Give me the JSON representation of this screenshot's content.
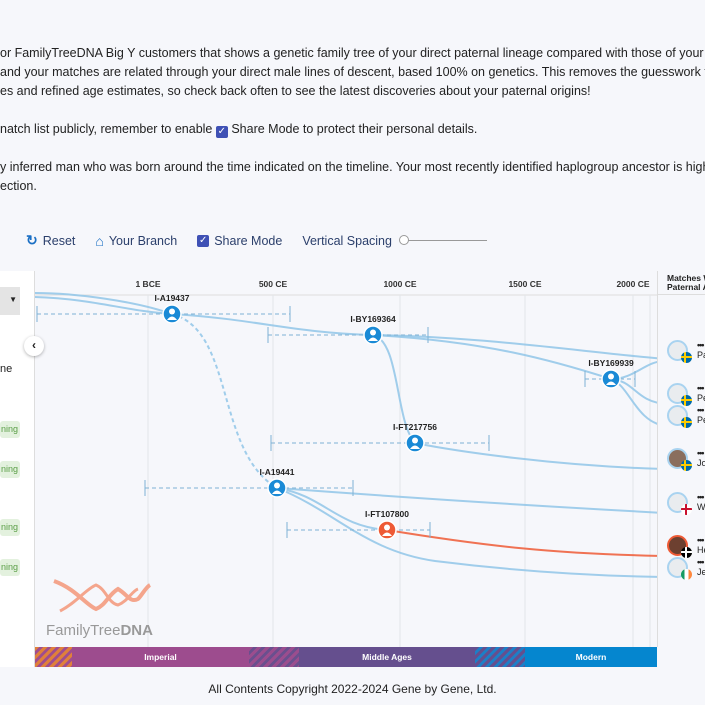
{
  "intro": {
    "line1": "or FamilyTreeDNA Big Y customers that shows a genetic family tree of your direct paternal lineage compared with those of your Y-DNA ma",
    "line2": "and your matches are related through your direct male lines of descent, based 100% on genetics. This removes the guesswork for understa",
    "line3": "es and refined age estimates, so check back often to see the latest discoveries about your paternal origins!",
    "share_pre": "natch list publicly, remember to enable",
    "share_post": "Share Mode to protect their personal details.",
    "line5": "y inferred man who was born around the time indicated on the timeline. Your most recently identified haplogroup ancestor is highlighted wi",
    "line6": "ection."
  },
  "toolbar": {
    "reset": "Reset",
    "your_branch": "Your Branch",
    "share_mode": "Share Mode",
    "share_mode_checked": true,
    "vertical_spacing": "Vertical Spacing",
    "vertical_spacing_value": 0
  },
  "sidebar": {
    "partial_text": "ne",
    "badges": [
      "ning",
      "ning",
      "ning",
      "ning"
    ]
  },
  "axis": {
    "ticks": [
      "1 BCE",
      "500 CE",
      "1000 CE",
      "1500 CE",
      "2000 CE"
    ]
  },
  "nodes": [
    {
      "label": "I-A19437",
      "highlight": false
    },
    {
      "label": "I-BY169364",
      "highlight": false
    },
    {
      "label": "I-BY169939",
      "highlight": false
    },
    {
      "label": "I-FT217756",
      "highlight": false
    },
    {
      "label": "I-A19441",
      "highlight": false
    },
    {
      "label": "I-FT107800",
      "highlight": true
    }
  ],
  "matches_header": {
    "line1": "Matches W",
    "line2": "Paternal A"
  },
  "matches": [
    {
      "masked": "•••",
      "name": "Pa",
      "flag": "sweden",
      "photo": false
    },
    {
      "masked": "•••",
      "name": "Pe",
      "flag": "sweden",
      "photo": false
    },
    {
      "masked": "•••",
      "name": "Pe",
      "flag": "sweden",
      "photo": false
    },
    {
      "masked": "•••",
      "name": "Jo",
      "flag": "sweden",
      "photo": true
    },
    {
      "masked": "•••",
      "name": "W",
      "flag": "united-kingdom",
      "photo": false
    },
    {
      "masked": "•••",
      "name": "He",
      "flag": "cornwall",
      "photo": true
    },
    {
      "masked": "•••",
      "name": "Je",
      "flag": "ireland",
      "photo": false
    }
  ],
  "timeline": {
    "eras": [
      "Imperial",
      "Middle Ages",
      "Modern"
    ]
  },
  "colors": {
    "branch": "#90c6e8",
    "highlight": "#ee5a35",
    "node": "#1a8ad6",
    "imperial": "#9d4c8e",
    "middle_ages": "#654f8e",
    "modern": "#0586cf"
  },
  "logo": {
    "text_light": "FamilyTree",
    "text_bold": "DNA"
  },
  "footer": "All Contents Copyright 2022-2024 Gene by Gene, Ltd."
}
